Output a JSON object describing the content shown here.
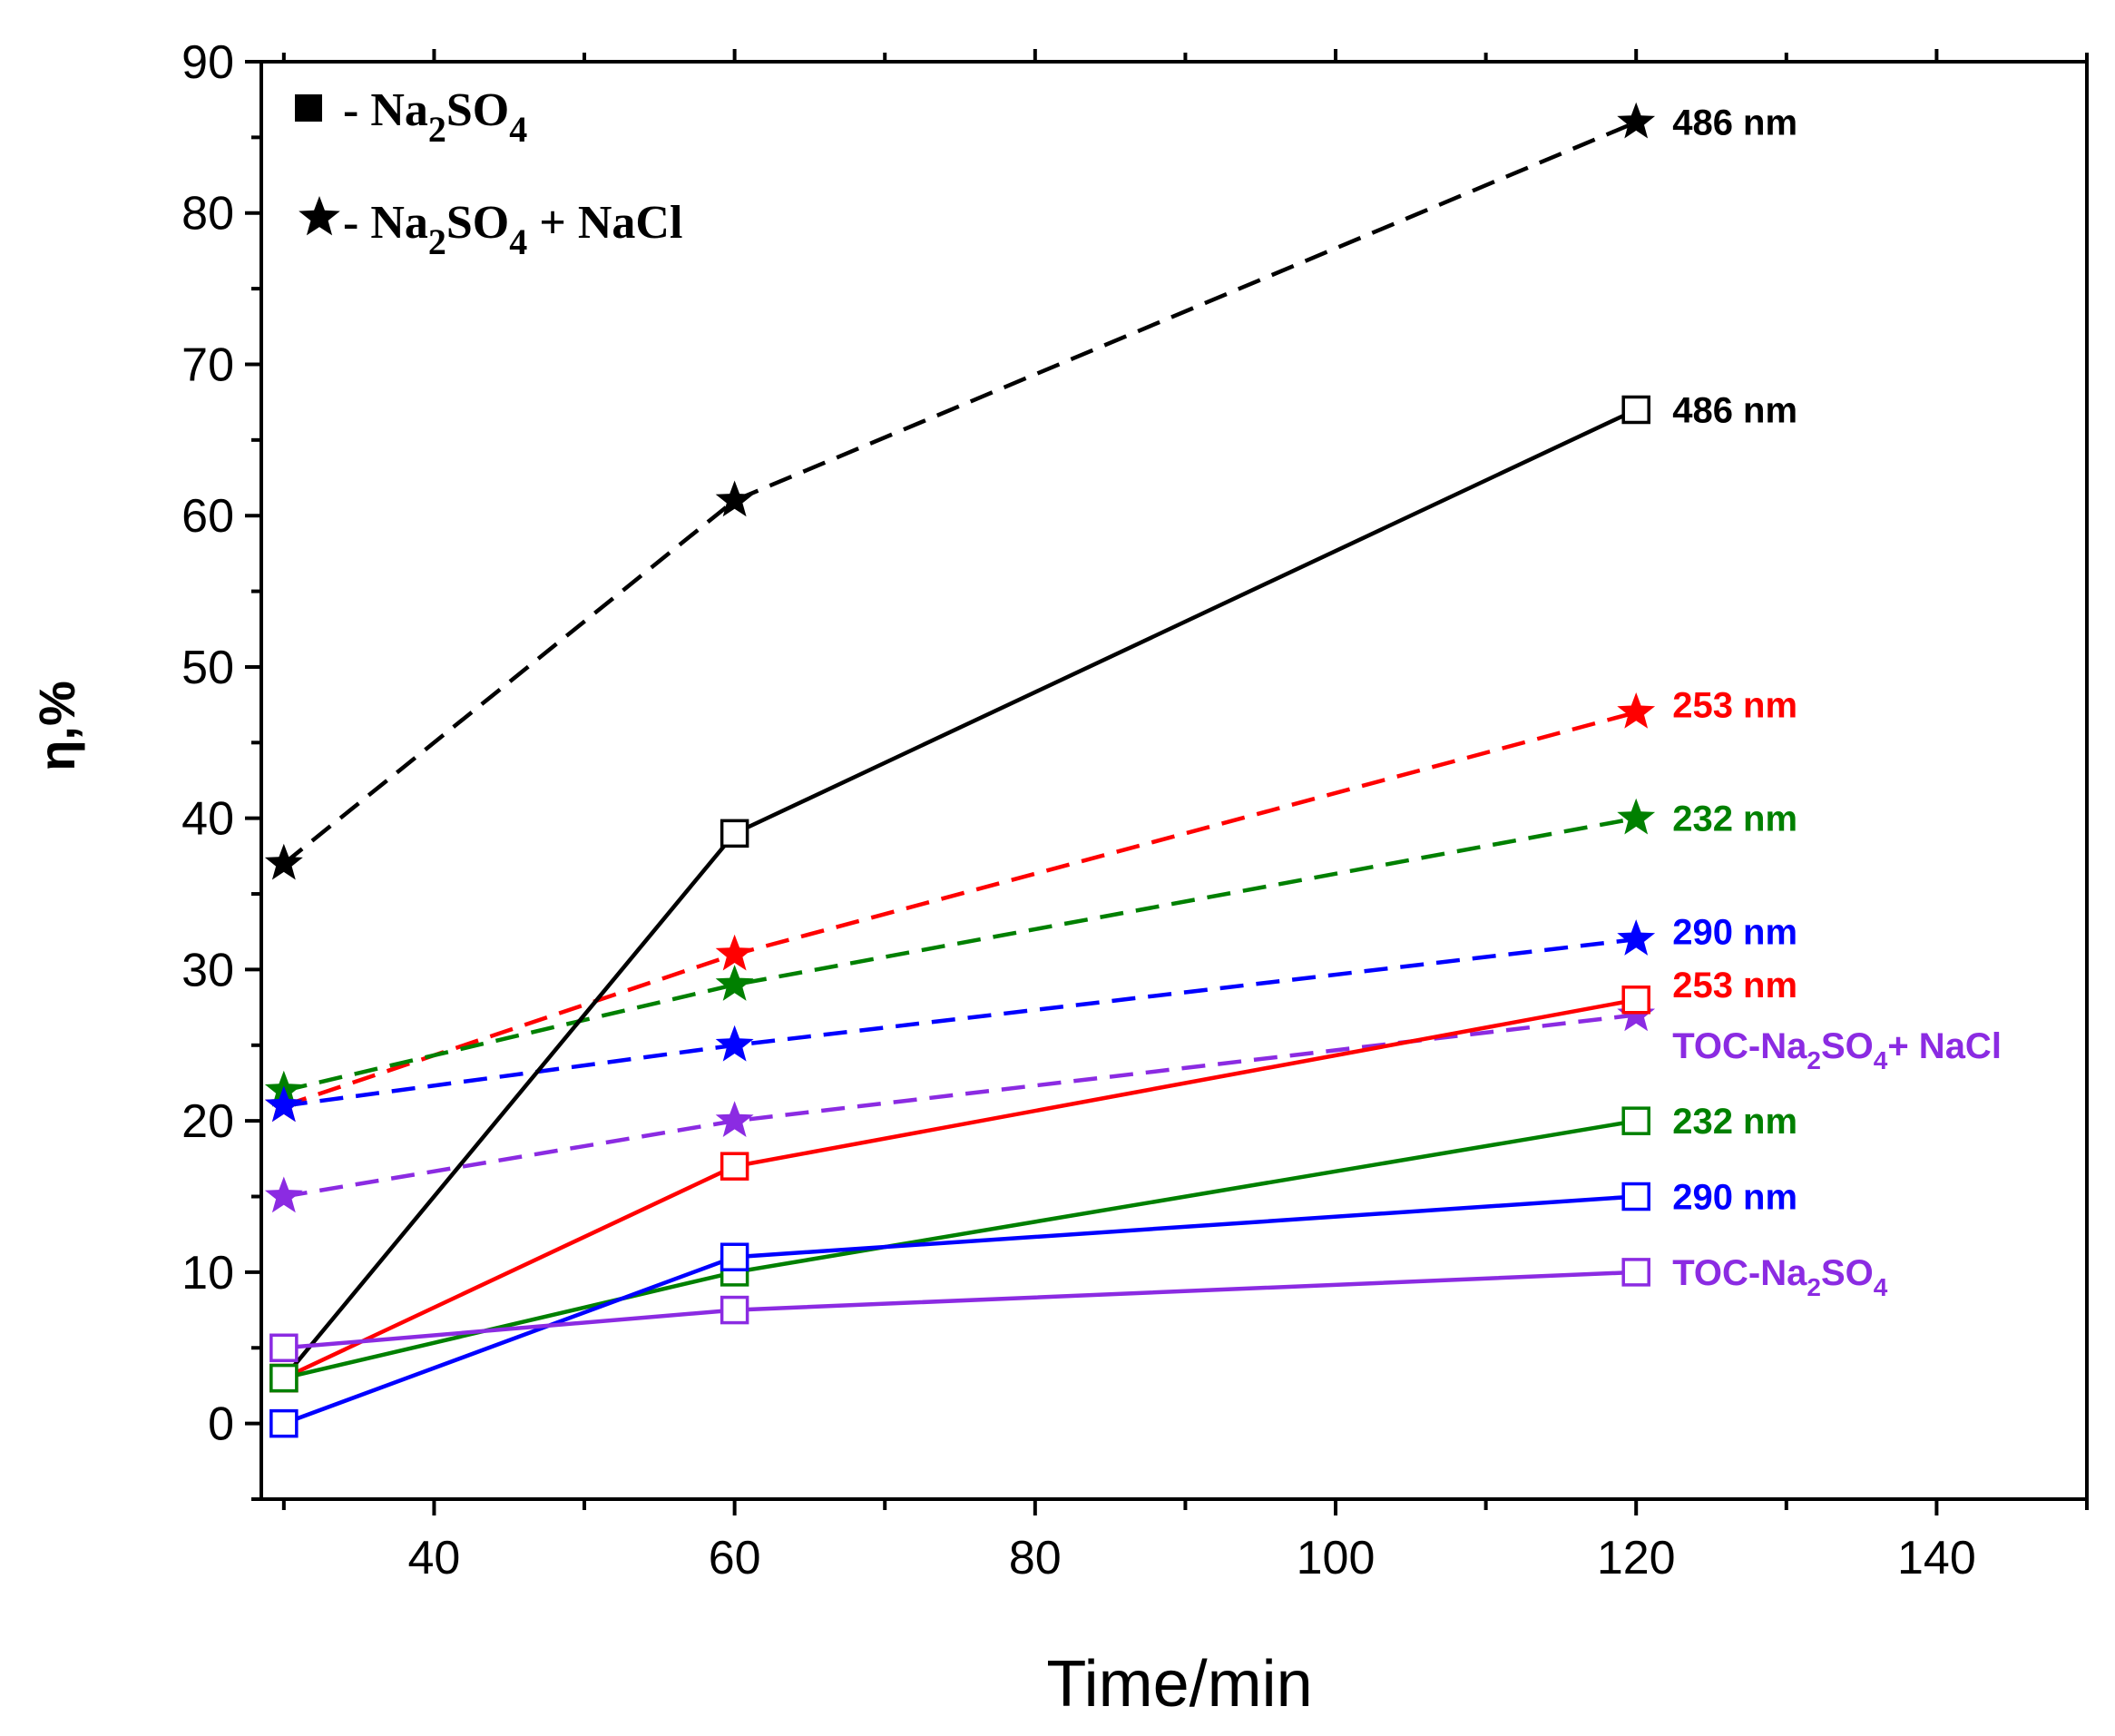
{
  "chart_data": {
    "type": "line",
    "xlabel": "Time/min",
    "ylabel": "η,%",
    "xlim": [
      28.5,
      150
    ],
    "ylim": [
      -5,
      90
    ],
    "x_ticks": [
      40,
      60,
      80,
      100,
      120,
      140
    ],
    "y_ticks": [
      0,
      10,
      20,
      30,
      40,
      50,
      60,
      70,
      80,
      90
    ],
    "x_minor_step": 10,
    "y_minor_step": 5,
    "legend": {
      "position": "top-left",
      "entries": [
        {
          "marker": "square",
          "prefix": "- Na",
          "parts": [
            [
              "Na",
              ""
            ],
            [
              "2",
              "sub"
            ],
            [
              "SO",
              ""
            ],
            [
              "4",
              "sub"
            ]
          ],
          "text": "- Na2SO4"
        },
        {
          "marker": "star",
          "text": "- Na2SO4 + NaCl"
        }
      ]
    },
    "series": [
      {
        "name": "486 nm",
        "condition": "Na2SO4 + NaCl",
        "color": "#000000",
        "marker": "star",
        "dash": true,
        "x": [
          30,
          60,
          120
        ],
        "values": [
          37,
          61,
          86
        ]
      },
      {
        "name": "253 nm",
        "condition": "Na2SO4 + NaCl",
        "color": "#ff0000",
        "marker": "star",
        "dash": true,
        "x": [
          30,
          60,
          120
        ],
        "values": [
          21,
          31,
          47
        ]
      },
      {
        "name": "232 nm",
        "condition": "Na2SO4 + NaCl",
        "color": "#008000",
        "marker": "star",
        "dash": true,
        "x": [
          30,
          60,
          120
        ],
        "values": [
          22,
          29,
          40
        ]
      },
      {
        "name": "290 nm",
        "condition": "Na2SO4 + NaCl",
        "color": "#0000ff",
        "marker": "star",
        "dash": true,
        "x": [
          30,
          60,
          120
        ],
        "values": [
          21,
          25,
          32
        ]
      },
      {
        "name": "TOC-Na2SO4+ NaCl",
        "condition": "Na2SO4 + NaCl",
        "color": "#8b2be2",
        "marker": "star",
        "dash": true,
        "x": [
          30,
          60,
          120
        ],
        "values": [
          15,
          20,
          27
        ]
      },
      {
        "name": "486 nm",
        "condition": "Na2SO4",
        "color": "#000000",
        "marker": "square",
        "dash": false,
        "x": [
          30,
          60,
          120
        ],
        "values": [
          3,
          39,
          67
        ]
      },
      {
        "name": "253 nm",
        "condition": "Na2SO4",
        "color": "#ff0000",
        "marker": "square",
        "dash": false,
        "x": [
          30,
          60,
          120
        ],
        "values": [
          3,
          17,
          28
        ]
      },
      {
        "name": "232 nm",
        "condition": "Na2SO4",
        "color": "#008000",
        "marker": "square",
        "dash": false,
        "x": [
          30,
          60,
          120
        ],
        "values": [
          3,
          10,
          20
        ]
      },
      {
        "name": "290 nm",
        "condition": "Na2SO4",
        "color": "#0000ff",
        "marker": "square",
        "dash": false,
        "x": [
          30,
          60,
          120
        ],
        "values": [
          0,
          11,
          15
        ]
      },
      {
        "name": "TOC-Na2SO4",
        "condition": "Na2SO4",
        "color": "#8b2be2",
        "marker": "square",
        "dash": false,
        "x": [
          30,
          60,
          120
        ],
        "values": [
          5,
          7.5,
          10
        ]
      }
    ],
    "annotations": [
      {
        "text": "486 nm",
        "color": "#000000",
        "x": 120,
        "y": 86
      },
      {
        "text": "486 nm",
        "color": "#000000",
        "x": 120,
        "y": 67
      },
      {
        "text": "253 nm",
        "color": "#ff0000",
        "x": 120,
        "y": 47.5
      },
      {
        "text": "232 nm",
        "color": "#008000",
        "x": 120,
        "y": 40
      },
      {
        "text": "290 nm",
        "color": "#0000ff",
        "x": 120,
        "y": 32.5
      },
      {
        "text": "253 nm",
        "color": "#ff0000",
        "x": 120,
        "y": 29
      },
      {
        "text": "TOC-Na2SO4+ NaCl",
        "color": "#8b2be2",
        "x": 120,
        "y": 25
      },
      {
        "text": "232 nm",
        "color": "#008000",
        "x": 120,
        "y": 20
      },
      {
        "text": "290 nm",
        "color": "#0000ff",
        "x": 120,
        "y": 15
      },
      {
        "text": "TOC-Na2SO4",
        "color": "#8b2be2",
        "x": 120,
        "y": 10
      }
    ]
  }
}
